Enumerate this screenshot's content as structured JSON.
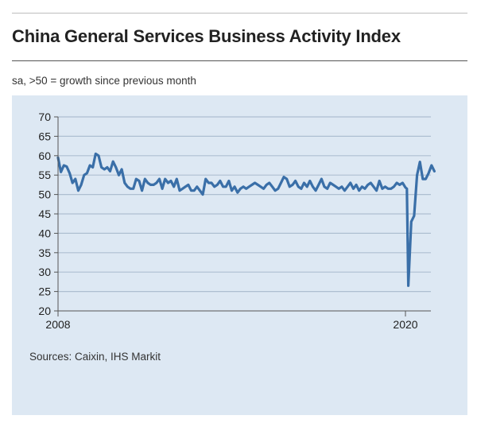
{
  "header": {
    "title": "China General Services Business Activity Index",
    "subtitle": "sa, >50 = growth since previous month"
  },
  "footer": {
    "source": "Sources: Caixin, IHS Markit"
  },
  "colors": {
    "line": "#3a6fa8",
    "panel": "#dde8f3",
    "grid": "#aebfd1",
    "axis": "#555555"
  },
  "chart_data": {
    "type": "line",
    "title": "China General Services Business Activity Index",
    "subtitle": "sa, >50 = growth since previous month",
    "xlabel": "",
    "ylabel": "",
    "ylim": [
      20,
      70
    ],
    "yticks": [
      20,
      25,
      30,
      35,
      40,
      45,
      50,
      55,
      60,
      65,
      70
    ],
    "xlim": [
      2008.0,
      2021.0
    ],
    "xticks": [
      {
        "value": 2008,
        "label": "2008"
      },
      {
        "value": 2020,
        "label": "2020"
      }
    ],
    "grid": true,
    "legend": "none",
    "series": [
      {
        "x": [
          2008.0,
          2008.1,
          2008.2,
          2008.3,
          2008.4,
          2008.5,
          2008.6,
          2008.7,
          2008.8,
          2008.9,
          2009.0,
          2009.1,
          2009.2,
          2009.3,
          2009.4,
          2009.5,
          2009.6,
          2009.7,
          2009.8,
          2009.9,
          2010.0,
          2010.1,
          2010.2,
          2010.3,
          2010.4,
          2010.5,
          2010.6,
          2010.7,
          2010.8,
          2010.9,
          2011.0,
          2011.1,
          2011.2,
          2011.3,
          2011.4,
          2011.5,
          2011.6,
          2011.7,
          2011.8,
          2011.9,
          2012.0,
          2012.1,
          2012.2,
          2012.3,
          2012.4,
          2012.5,
          2012.6,
          2012.7,
          2012.8,
          2012.9,
          2013.0,
          2013.1,
          2013.2,
          2013.3,
          2013.4,
          2013.5,
          2013.6,
          2013.7,
          2013.8,
          2013.9,
          2014.0,
          2014.1,
          2014.2,
          2014.3,
          2014.4,
          2014.5,
          2014.6,
          2014.7,
          2014.8,
          2014.9,
          2015.0,
          2015.1,
          2015.2,
          2015.3,
          2015.4,
          2015.5,
          2015.6,
          2015.7,
          2015.8,
          2015.9,
          2016.0,
          2016.1,
          2016.2,
          2016.3,
          2016.4,
          2016.5,
          2016.6,
          2016.7,
          2016.8,
          2016.9,
          2017.0,
          2017.1,
          2017.2,
          2017.3,
          2017.4,
          2017.5,
          2017.6,
          2017.7,
          2017.8,
          2017.9,
          2018.0,
          2018.1,
          2018.2,
          2018.3,
          2018.4,
          2018.5,
          2018.6,
          2018.7,
          2018.8,
          2018.9,
          2019.0,
          2019.1,
          2019.2,
          2019.3,
          2019.4,
          2019.5,
          2019.6,
          2019.7,
          2019.8,
          2019.9,
          2020.0,
          2020.05,
          2020.1,
          2020.2,
          2020.3,
          2020.4,
          2020.5,
          2020.6,
          2020.7,
          2020.8,
          2020.9,
          2021.0
        ],
        "y": [
          59.5,
          55.8,
          57.5,
          57.2,
          55.5,
          53.0,
          54.0,
          51.0,
          52.5,
          55.0,
          55.5,
          57.5,
          57.0,
          60.5,
          60.0,
          57.0,
          56.5,
          57.0,
          56.0,
          58.5,
          57.0,
          55.0,
          56.5,
          53.0,
          52.0,
          51.5,
          51.5,
          54.0,
          53.5,
          51.0,
          54.0,
          53.0,
          52.5,
          52.5,
          53.0,
          54.0,
          51.5,
          54.0,
          53.0,
          53.5,
          52.0,
          54.0,
          51.0,
          51.5,
          52.0,
          52.5,
          51.0,
          51.0,
          52.0,
          51.0,
          50.0,
          54.0,
          53.0,
          53.0,
          52.0,
          52.5,
          53.5,
          52.0,
          52.0,
          53.5,
          51.0,
          52.0,
          50.5,
          51.5,
          52.0,
          51.5,
          52.0,
          52.5,
          53.0,
          52.5,
          52.0,
          51.5,
          52.5,
          53.0,
          52.0,
          51.0,
          51.5,
          53.0,
          54.5,
          54.0,
          52.0,
          52.5,
          53.5,
          52.0,
          51.5,
          53.0,
          52.0,
          53.5,
          52.0,
          51.0,
          52.5,
          54.0,
          52.0,
          51.5,
          53.0,
          52.5,
          52.0,
          51.5,
          52.0,
          51.0,
          52.0,
          53.0,
          51.5,
          52.5,
          51.0,
          52.0,
          51.5,
          52.5,
          53.0,
          52.0,
          51.0,
          53.5,
          51.5,
          52.0,
          51.5,
          51.5,
          52.0,
          53.0,
          52.5,
          53.0,
          51.8,
          51.5,
          26.5,
          43.0,
          44.5,
          55.0,
          58.4,
          54.0,
          54.0,
          55.5,
          57.5,
          56.0
        ]
      }
    ]
  }
}
